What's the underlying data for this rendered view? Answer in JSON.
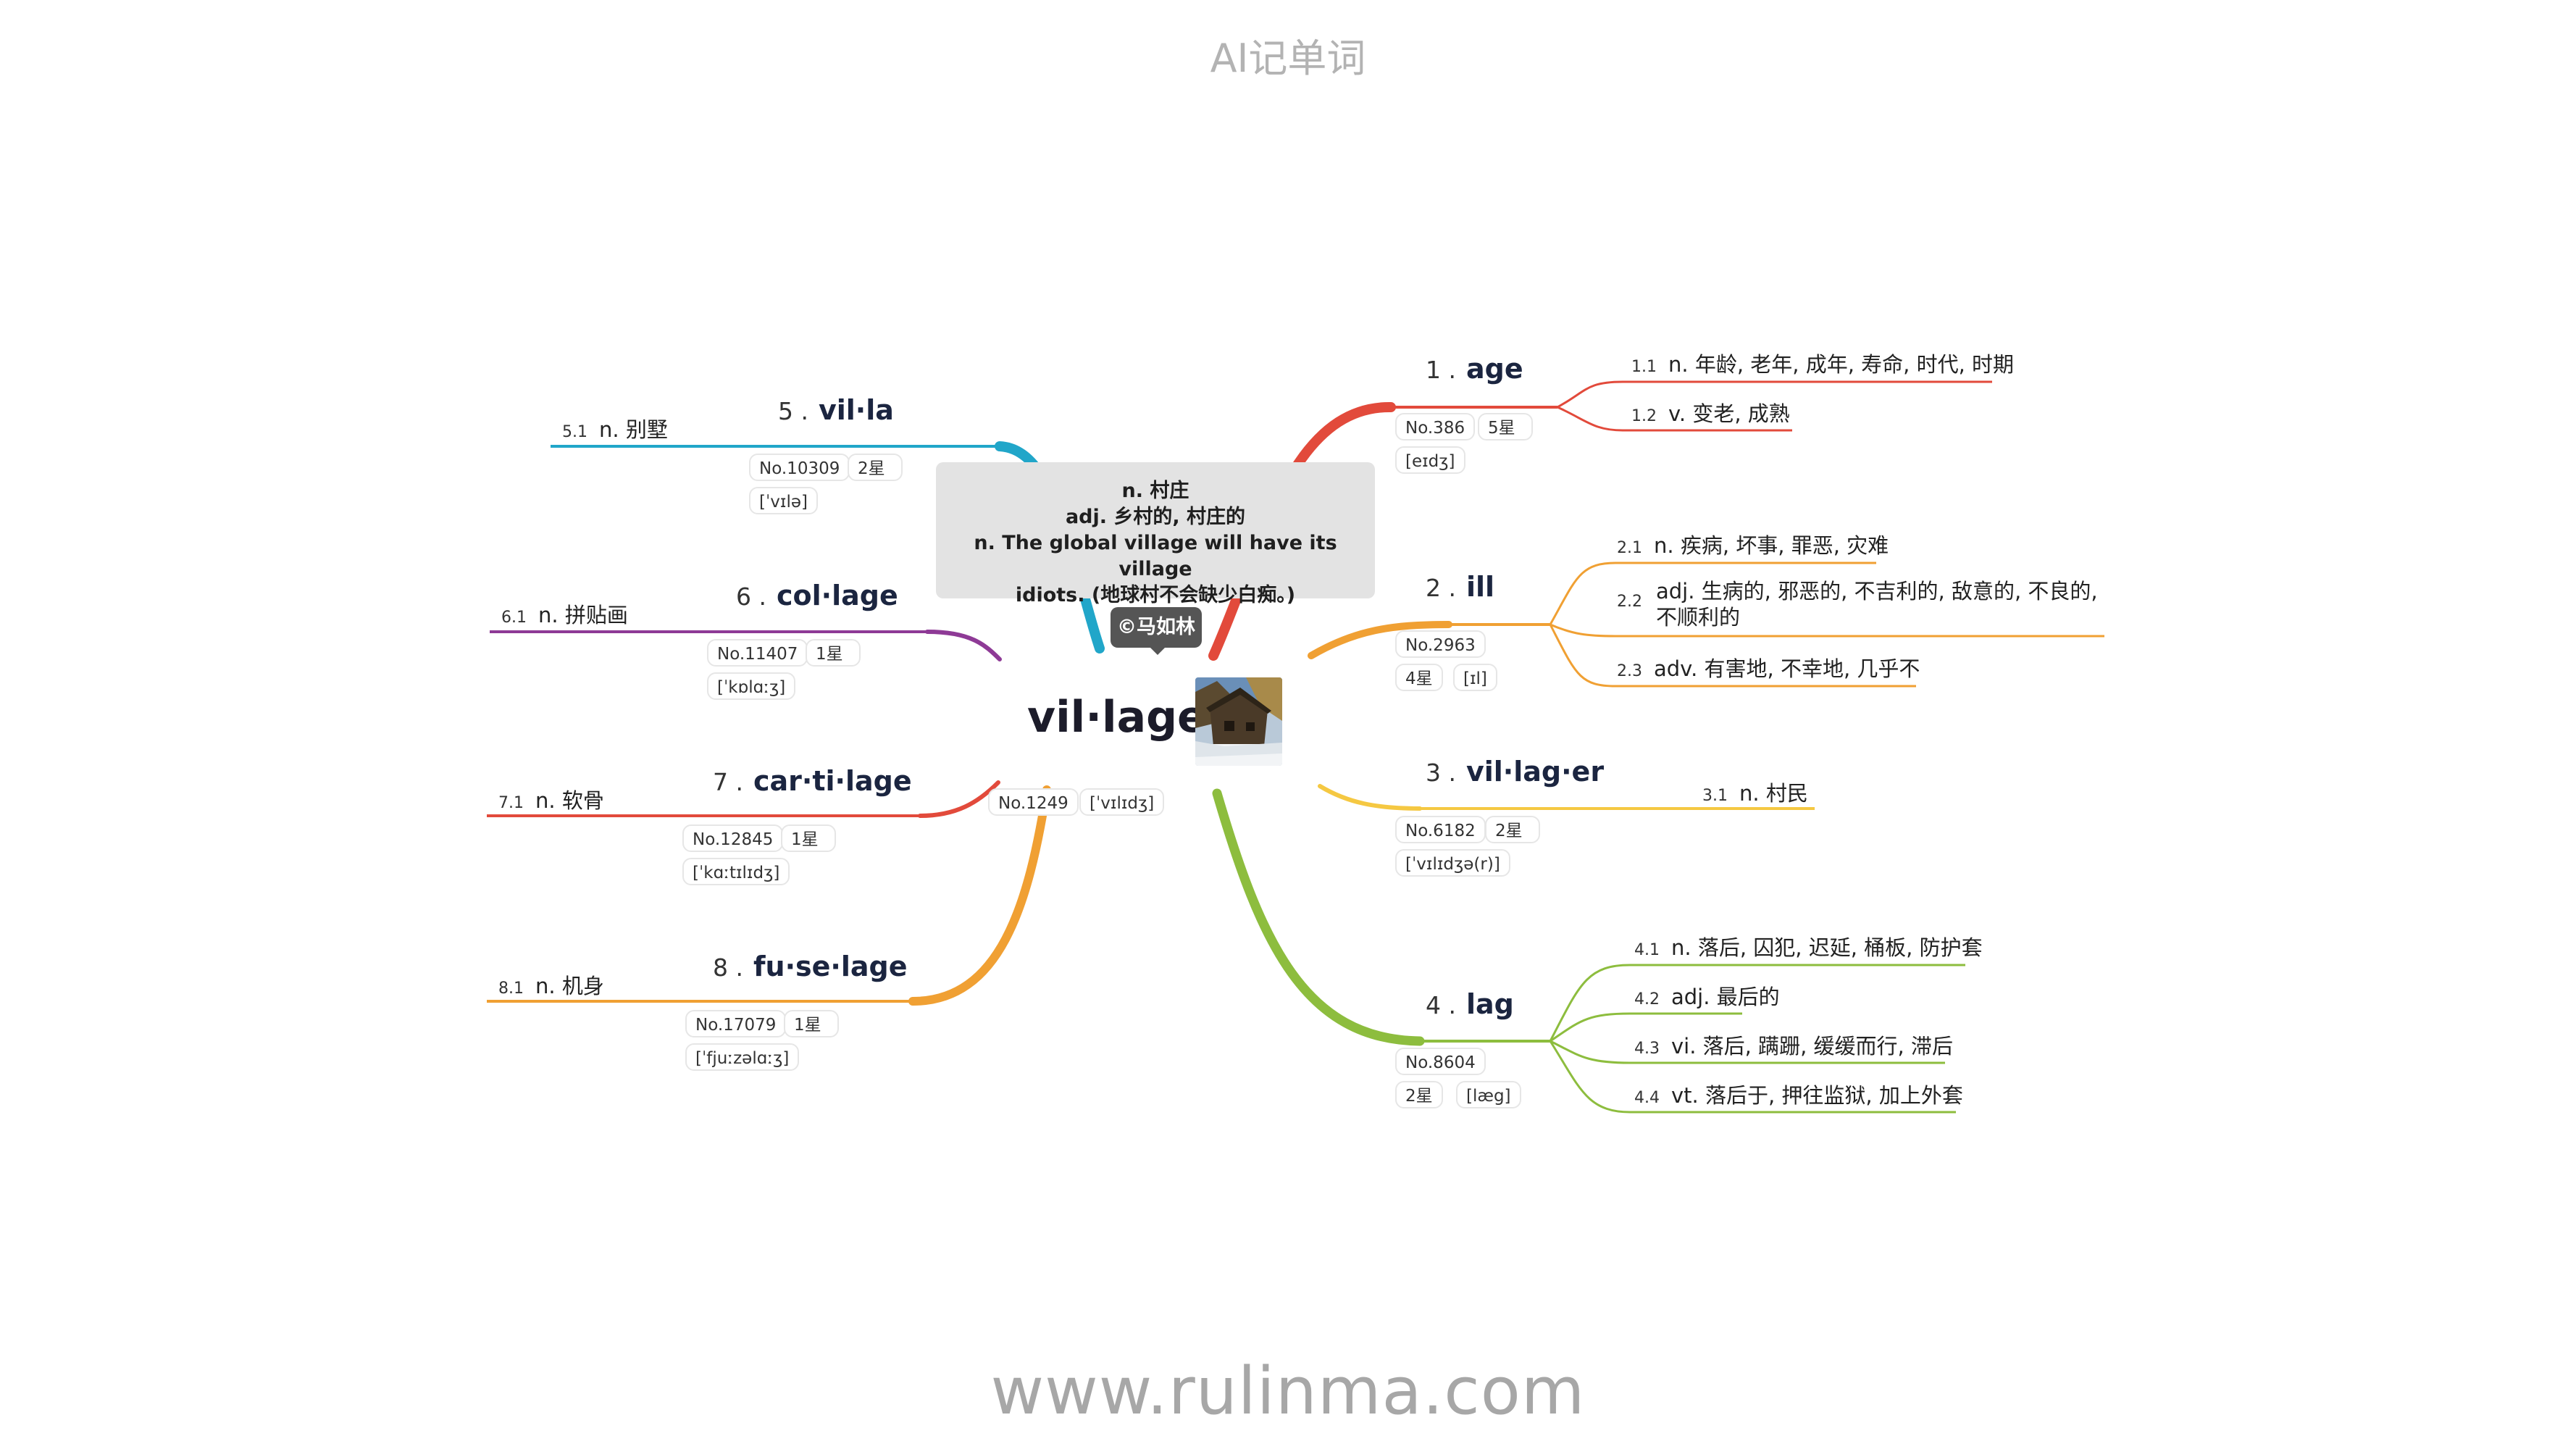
{
  "header": {
    "title": "AI记单词"
  },
  "footer": {
    "url": "www.rulinma.com"
  },
  "center": {
    "word": "vil·lage",
    "number": "No.1249",
    "phonetic": "[ˈvɪlɪdʒ]",
    "definition_lines": [
      "n. 村庄",
      "adj. 乡村的, 村庄的",
      "n. The global village will have its village",
      "idiots. (地球村不会缺少白痴。)"
    ],
    "author": "©马如林"
  },
  "branches": [
    {
      "index": "1 .",
      "word": "age",
      "number": "No.386",
      "stars": "5星",
      "phonetic": "[eɪdʒ]",
      "color": "#e24a3b",
      "senses": [
        {
          "num": "1.1",
          "text": "n. 年龄, 老年, 成年, 寿命, 时代, 时期"
        },
        {
          "num": "1.2",
          "text": "v. 变老, 成熟"
        }
      ]
    },
    {
      "index": "2 .",
      "word": "ill",
      "number": "No.2963",
      "stars": "4星",
      "phonetic": "[ɪl]",
      "color": "#f0a033",
      "senses": [
        {
          "num": "2.1",
          "text": "n. 疾病, 坏事, 罪恶, 灾难"
        },
        {
          "num": "2.2",
          "text": "adj. 生病的, 邪恶的, 不吉利的, 敌意的, 不良的, 不顺利的"
        },
        {
          "num": "2.3",
          "text": "adv. 有害地, 不幸地, 几乎不"
        }
      ]
    },
    {
      "index": "3 .",
      "word": "vil·lag·er",
      "number": "No.6182",
      "stars": "2星",
      "phonetic": "[ˈvɪlɪdʒə(r)]",
      "color": "#f5c842",
      "senses": [
        {
          "num": "3.1",
          "text": "n. 村民"
        }
      ]
    },
    {
      "index": "4 .",
      "word": "lag",
      "number": "No.8604",
      "stars": "2星",
      "phonetic": "[læg]",
      "color": "#8dbd3e",
      "senses": [
        {
          "num": "4.1",
          "text": "n. 落后, 囚犯, 迟延, 桶板, 防护套"
        },
        {
          "num": "4.2",
          "text": "adj. 最后的"
        },
        {
          "num": "4.3",
          "text": "vi. 落后, 蹒跚, 缓缓而行, 滞后"
        },
        {
          "num": "4.4",
          "text": "vt. 落后于, 押往监狱, 加上外套"
        }
      ]
    },
    {
      "index": "5 .",
      "word": "vil·la",
      "number": "No.10309",
      "stars": "2星",
      "phonetic": "[ˈvɪlə]",
      "color": "#21a6c9",
      "senses": [
        {
          "num": "5.1",
          "text": "n. 别墅"
        }
      ]
    },
    {
      "index": "6 .",
      "word": "col·lage",
      "number": "No.11407",
      "stars": "1星",
      "phonetic": "[ˈkɒlɑːʒ]",
      "color": "#8e3a96",
      "senses": [
        {
          "num": "6.1",
          "text": "n. 拼贴画"
        }
      ]
    },
    {
      "index": "7 .",
      "word": "car·ti·lage",
      "number": "No.12845",
      "stars": "1星",
      "phonetic": "[ˈkɑːtɪlɪdʒ]",
      "color": "#e24a3b",
      "senses": [
        {
          "num": "7.1",
          "text": "n. 软骨"
        }
      ]
    },
    {
      "index": "8 .",
      "word": "fu·se·lage",
      "number": "No.17079",
      "stars": "1星",
      "phonetic": "[ˈfjuːzəlɑːʒ]",
      "color": "#f0a033",
      "senses": [
        {
          "num": "8.1",
          "text": "n. 机身"
        }
      ]
    }
  ]
}
